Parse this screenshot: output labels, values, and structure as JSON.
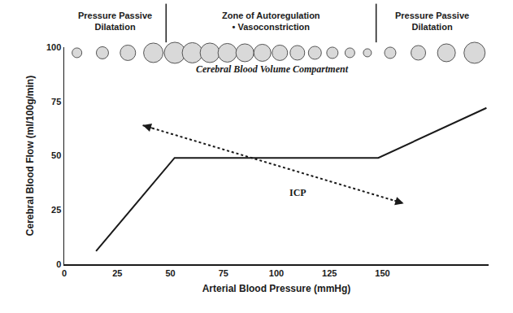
{
  "chart_data": {
    "type": "line",
    "x_label": "Arterial Blood Pressure (mmHg)",
    "y_label": "Cerebral Blood Flow (ml/100g/min)",
    "x": [
      15,
      52,
      148,
      199
    ],
    "values": [
      6,
      49,
      49,
      72
    ],
    "color": "#1a1a1a",
    "xlim": [
      0,
      200
    ],
    "ylim": [
      0,
      100
    ],
    "xticks": [
      0,
      25,
      50,
      75,
      100,
      125,
      150
    ],
    "yticks": [
      0,
      25,
      50,
      75,
      100
    ],
    "grid": false,
    "regions": [
      {
        "label": [
          "Pressure Passive",
          "Dilatation"
        ],
        "x": [
          0,
          48
        ]
      },
      {
        "label": [
          "Zone of Autoregulation",
          "• Vasoconstriction"
        ],
        "x": [
          48,
          147
        ]
      },
      {
        "label": [
          "Pressure Passive",
          "Dilatation"
        ],
        "x": [
          147,
          200
        ]
      }
    ],
    "annotations": [
      {
        "text": "Cerebral Blood Volume Compartment",
        "x": 98,
        "y": 90
      },
      {
        "text": "ICP",
        "x": 110,
        "y": 33
      }
    ],
    "arrows": [
      {
        "x": [
          37,
          160
        ],
        "y": [
          64,
          28
        ],
        "line_style": "dotted"
      }
    ]
  }
}
